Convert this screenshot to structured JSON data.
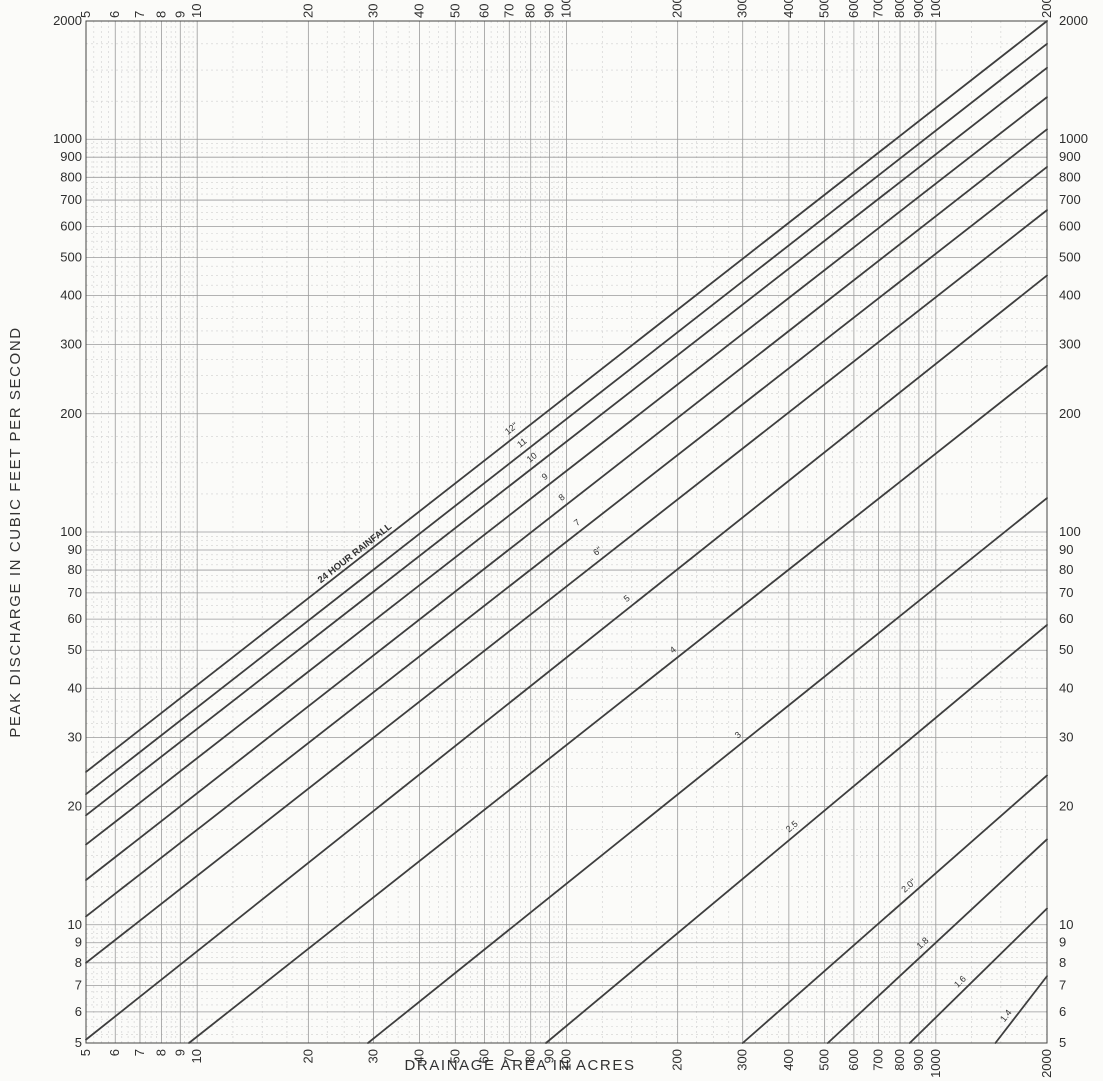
{
  "chart_data": {
    "type": "line",
    "x_scale": "log",
    "y_scale": "log",
    "xlim": [
      5,
      2000
    ],
    "ylim": [
      5,
      2000
    ],
    "xlabel": "DRAINAGE AREA IN ACRES",
    "ylabel": "PEAK DISCHARGE IN CUBIC FEET PER SECOND",
    "x_ticks": [
      5,
      6,
      7,
      8,
      9,
      10,
      20,
      30,
      40,
      50,
      60,
      70,
      80,
      90,
      100,
      200,
      300,
      400,
      500,
      600,
      700,
      800,
      900,
      1000,
      2000
    ],
    "y_ticks_left": [
      5,
      6,
      7,
      8,
      9,
      10,
      20,
      30,
      40,
      50,
      60,
      70,
      80,
      90,
      100,
      200,
      300,
      400,
      500,
      600,
      700,
      800,
      900,
      1000,
      2000
    ],
    "y_ticks_right": [
      5,
      6,
      7,
      8,
      9,
      10,
      20,
      30,
      40,
      50,
      60,
      70,
      80,
      90,
      100,
      200,
      300,
      400,
      500,
      600,
      700,
      800,
      900,
      1000,
      2000
    ],
    "grid": true,
    "annotation": "24 HOUR RAINFALL",
    "series": [
      {
        "name": "12\"",
        "label_x": 73,
        "points": [
          [
            5,
            24.5
          ],
          [
            2000,
            2000
          ]
        ]
      },
      {
        "name": "11",
        "label_x": 78,
        "points": [
          [
            5,
            21.5
          ],
          [
            2000,
            1750
          ]
        ]
      },
      {
        "name": "10",
        "label_x": 83,
        "points": [
          [
            5,
            19
          ],
          [
            2000,
            1520
          ]
        ]
      },
      {
        "name": "9",
        "label_x": 90,
        "points": [
          [
            5,
            16
          ],
          [
            2000,
            1280
          ]
        ]
      },
      {
        "name": "8",
        "label_x": 100,
        "points": [
          [
            5,
            13
          ],
          [
            2000,
            1060
          ]
        ]
      },
      {
        "name": "7",
        "label_x": 110,
        "points": [
          [
            5,
            10.5
          ],
          [
            2000,
            850
          ]
        ]
      },
      {
        "name": "6\"",
        "label_x": 125,
        "points": [
          [
            5,
            8
          ],
          [
            2000,
            660
          ]
        ]
      },
      {
        "name": "5",
        "label_x": 150,
        "points": [
          [
            5,
            5.1
          ],
          [
            2000,
            450
          ]
        ]
      },
      {
        "name": "4",
        "label_x": 200,
        "points": [
          [
            9.5,
            5
          ],
          [
            2000,
            265
          ]
        ]
      },
      {
        "name": "3",
        "label_x": 300,
        "points": [
          [
            29,
            5
          ],
          [
            2000,
            122
          ]
        ]
      },
      {
        "name": "2.5",
        "label_x": 420,
        "points": [
          [
            88,
            5
          ],
          [
            2000,
            58
          ]
        ]
      },
      {
        "name": "2.0\"",
        "label_x": 870,
        "points": [
          [
            300,
            5
          ],
          [
            2000,
            24
          ]
        ]
      },
      {
        "name": "1.8",
        "label_x": 950,
        "points": [
          [
            510,
            5
          ],
          [
            2000,
            16.5
          ]
        ]
      },
      {
        "name": "1.6",
        "label_x": 1200,
        "points": [
          [
            850,
            5
          ],
          [
            2000,
            11
          ]
        ]
      },
      {
        "name": "1.4",
        "label_x": 1600,
        "points": [
          [
            1450,
            5
          ],
          [
            2000,
            7.4
          ]
        ]
      }
    ]
  }
}
